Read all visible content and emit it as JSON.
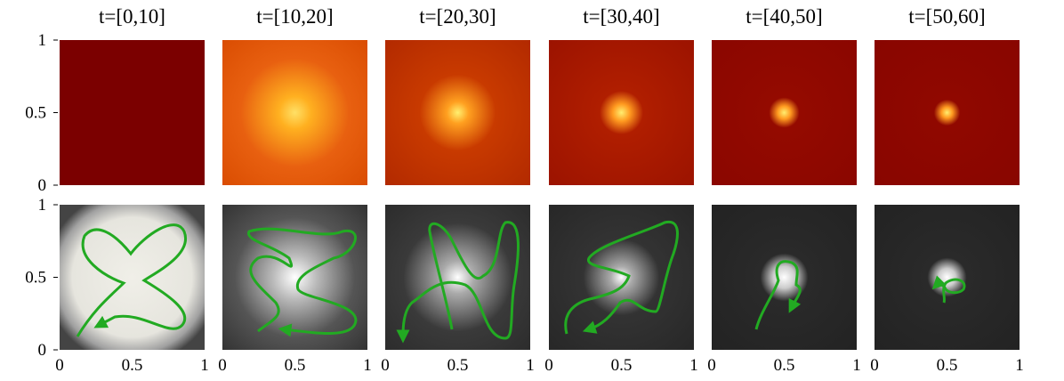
{
  "columns": [
    {
      "title": "t=[0,10]"
    },
    {
      "title": "t=[10,20]"
    },
    {
      "title": "t=[20,30]"
    },
    {
      "title": "t=[30,40]"
    },
    {
      "title": "t=[40,50]"
    },
    {
      "title": "t=[50,60]"
    }
  ],
  "y_axis_ticks": [
    0,
    0.5,
    1
  ],
  "x_axis_ticks": [
    0,
    0.5,
    1
  ]
}
